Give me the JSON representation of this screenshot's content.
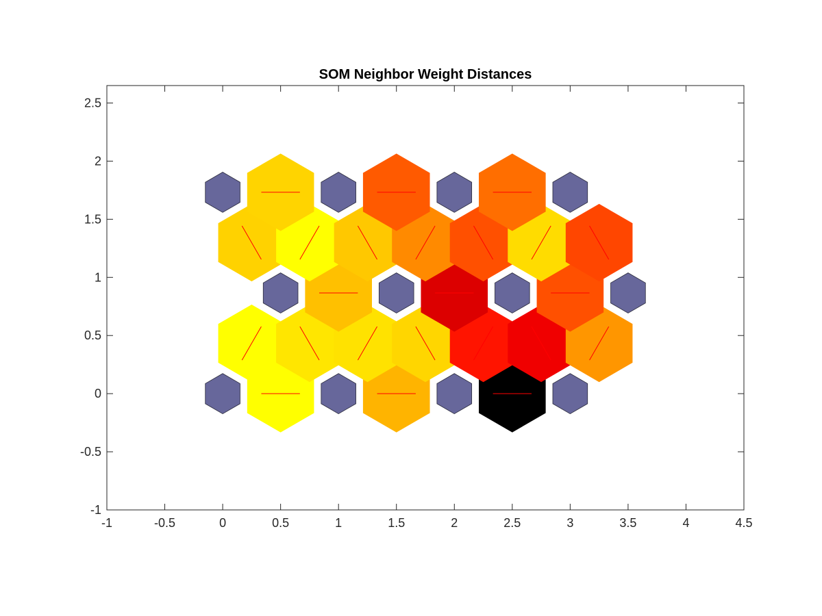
{
  "chart_data": {
    "type": "heatmap",
    "title": "SOM Neighbor Weight Distances",
    "xlabel": "",
    "ylabel": "",
    "xlim": [
      -1,
      4.5
    ],
    "ylim": [
      -1,
      2.65
    ],
    "xticks": [
      -1,
      -0.5,
      0,
      0.5,
      1,
      1.5,
      2,
      2.5,
      3,
      3.5,
      4,
      4.5
    ],
    "xtick_labels": [
      "-1",
      "-0.5",
      "0",
      "0.5",
      "1",
      "1.5",
      "2",
      "2.5",
      "3",
      "3.5",
      "4",
      "4.5"
    ],
    "yticks": [
      -1,
      -0.5,
      0,
      0.5,
      1,
      1.5,
      2,
      2.5
    ],
    "ytick_labels": [
      "-1",
      "-0.5",
      "0",
      "0.5",
      "1",
      "1.5",
      "2",
      "2.5"
    ],
    "grid": false,
    "colormap": "hot",
    "neuron_color": "#67679b",
    "line_color": "#ff0000",
    "neurons": [
      {
        "x": 0,
        "y": 0
      },
      {
        "x": 1,
        "y": 0
      },
      {
        "x": 2,
        "y": 0
      },
      {
        "x": 3,
        "y": 0
      },
      {
        "x": 0.5,
        "y": 0.866
      },
      {
        "x": 1.5,
        "y": 0.866
      },
      {
        "x": 2.5,
        "y": 0.866
      },
      {
        "x": 3.5,
        "y": 0.866
      },
      {
        "x": 0,
        "y": 1.732
      },
      {
        "x": 1,
        "y": 1.732
      },
      {
        "x": 2,
        "y": 1.732
      },
      {
        "x": 3,
        "y": 1.732
      }
    ],
    "distances": [
      {
        "x": 0.5,
        "y": 0,
        "orientation": "horizontal",
        "color": "#ffff00"
      },
      {
        "x": 1.5,
        "y": 0,
        "orientation": "horizontal",
        "color": "#ffb400"
      },
      {
        "x": 2.5,
        "y": 0,
        "orientation": "horizontal",
        "color": "#000000"
      },
      {
        "x": 0.25,
        "y": 0.433,
        "orientation": "rising",
        "color": "#ffff00"
      },
      {
        "x": 0.75,
        "y": 0.433,
        "orientation": "falling",
        "color": "#ffe600"
      },
      {
        "x": 1.25,
        "y": 0.433,
        "orientation": "rising",
        "color": "#ffe200"
      },
      {
        "x": 1.75,
        "y": 0.433,
        "orientation": "falling",
        "color": "#ffd600"
      },
      {
        "x": 2.25,
        "y": 0.433,
        "orientation": "rising",
        "color": "#ff1400"
      },
      {
        "x": 2.75,
        "y": 0.433,
        "orientation": "falling",
        "color": "#f00000"
      },
      {
        "x": 3.25,
        "y": 0.433,
        "orientation": "rising",
        "color": "#ff9600"
      },
      {
        "x": 1,
        "y": 0.866,
        "orientation": "horizontal",
        "color": "#ffc000"
      },
      {
        "x": 2,
        "y": 0.866,
        "orientation": "horizontal",
        "color": "#dc0000"
      },
      {
        "x": 3,
        "y": 0.866,
        "orientation": "horizontal",
        "color": "#ff5000"
      },
      {
        "x": 0.25,
        "y": 1.299,
        "orientation": "falling",
        "color": "#ffd200"
      },
      {
        "x": 0.75,
        "y": 1.299,
        "orientation": "rising",
        "color": "#ffff00"
      },
      {
        "x": 1.25,
        "y": 1.299,
        "orientation": "falling",
        "color": "#ffc800"
      },
      {
        "x": 1.75,
        "y": 1.299,
        "orientation": "rising",
        "color": "#ff8a00"
      },
      {
        "x": 2.25,
        "y": 1.299,
        "orientation": "falling",
        "color": "#ff5000"
      },
      {
        "x": 2.75,
        "y": 1.299,
        "orientation": "rising",
        "color": "#ffdc00"
      },
      {
        "x": 3.25,
        "y": 1.299,
        "orientation": "falling",
        "color": "#ff4600"
      },
      {
        "x": 0.5,
        "y": 1.732,
        "orientation": "horizontal",
        "color": "#ffd400"
      },
      {
        "x": 1.5,
        "y": 1.732,
        "orientation": "horizontal",
        "color": "#ff5a00"
      },
      {
        "x": 2.5,
        "y": 1.732,
        "orientation": "horizontal",
        "color": "#ff6e00"
      }
    ]
  }
}
